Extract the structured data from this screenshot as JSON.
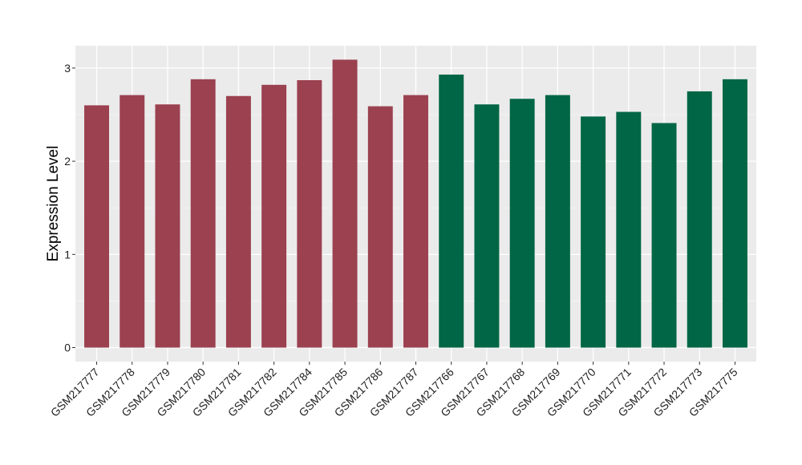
{
  "chart_data": {
    "type": "bar",
    "title": "",
    "xlabel": "",
    "ylabel": "Expression Level",
    "ylim": [
      -0.15,
      3.24
    ],
    "yticks": [
      0,
      1,
      2,
      3
    ],
    "grid": true,
    "categories": [
      "GSM217777",
      "GSM217778",
      "GSM217779",
      "GSM217780",
      "GSM217781",
      "GSM217782",
      "GSM217784",
      "GSM217785",
      "GSM217786",
      "GSM217787",
      "GSM217766",
      "GSM217767",
      "GSM217768",
      "GSM217769",
      "GSM217770",
      "GSM217771",
      "GSM217772",
      "GSM217773",
      "GSM217775"
    ],
    "values": [
      2.6,
      2.71,
      2.61,
      2.88,
      2.7,
      2.82,
      2.87,
      3.09,
      2.59,
      2.71,
      2.93,
      2.61,
      2.67,
      2.71,
      2.48,
      2.53,
      2.41,
      2.75,
      2.88
    ],
    "groups": [
      0,
      0,
      0,
      0,
      0,
      0,
      0,
      0,
      0,
      0,
      1,
      1,
      1,
      1,
      1,
      1,
      1,
      1,
      1
    ],
    "colors": [
      "#9b4150",
      "#016645"
    ],
    "panel_background": "#ebebeb"
  }
}
